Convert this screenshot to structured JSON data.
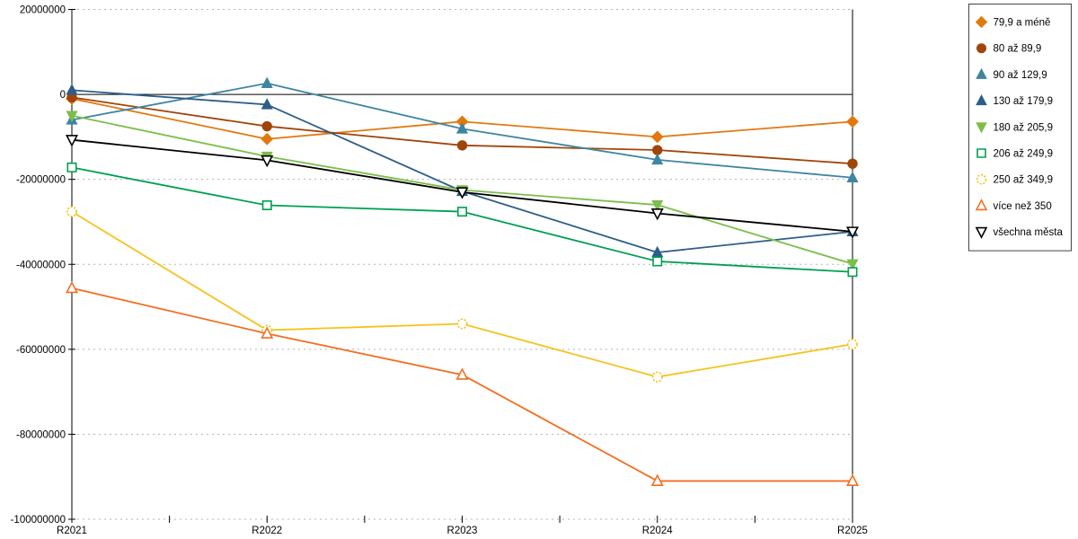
{
  "chart_data": {
    "type": "line",
    "title": "",
    "xlabel": "",
    "ylabel": "",
    "categories": [
      "R2021",
      "R2022",
      "R2023",
      "R2024",
      "R2025"
    ],
    "series": [
      {
        "name": "79,9 a méně",
        "color": "#e2790f",
        "marker": "diamond",
        "filled": true,
        "values": [
          -1000000,
          -10500000,
          -6400000,
          -10000000,
          -6400000
        ]
      },
      {
        "name": "80 až 89,9",
        "color": "#a0450a",
        "marker": "circle",
        "filled": true,
        "values": [
          -700000,
          -7500000,
          -12000000,
          -13100000,
          -16300000
        ]
      },
      {
        "name": "90 až 129,9",
        "color": "#3e86a0",
        "marker": "triangle-up",
        "filled": true,
        "values": [
          -6000000,
          2600000,
          -8100000,
          -15400000,
          -19600000
        ]
      },
      {
        "name": "130 až 179,9",
        "color": "#2d5e8a",
        "marker": "triangle-up",
        "filled": true,
        "values": [
          1000000,
          -2400000,
          -22800000,
          -37200000,
          -32300000
        ]
      },
      {
        "name": "180 až 205,9",
        "color": "#7cbe4a",
        "marker": "triangle-down",
        "filled": true,
        "values": [
          -5000000,
          -14600000,
          -22500000,
          -26000000,
          -39900000
        ]
      },
      {
        "name": "206 až 249,9",
        "color": "#00a050",
        "marker": "square",
        "filled": false,
        "values": [
          -17200000,
          -26100000,
          -27600000,
          -39300000,
          -41800000
        ]
      },
      {
        "name": "250 až 349,9",
        "color": "#f5c31d",
        "marker": "circle",
        "filled": false,
        "values": [
          -27600000,
          -55500000,
          -54000000,
          -66500000,
          -58800000
        ]
      },
      {
        "name": "více než 350",
        "color": "#f36f21",
        "marker": "triangle-up",
        "filled": false,
        "values": [
          -45600000,
          -56300000,
          -66000000,
          -91000000,
          -91000000
        ]
      },
      {
        "name": "všechna města",
        "color": "#000000",
        "marker": "triangle-down",
        "filled": false,
        "values": [
          -10700000,
          -15500000,
          -23000000,
          -28000000,
          -32300000
        ]
      }
    ],
    "ylim": [
      -100000000,
      20000000
    ],
    "ytick_interval": 20000000,
    "ytick_labels": [
      "20000000",
      "0",
      "-20000000",
      "-40000000",
      "-60000000",
      "-80000000",
      "-100000000"
    ],
    "grid": "horizontal-dotted",
    "zero_line": true,
    "legend_position": "right",
    "colors": {
      "gridline": "#b3b3b3",
      "axis": "#000000",
      "background": "#ffffff",
      "legend_border": "#444444"
    }
  }
}
